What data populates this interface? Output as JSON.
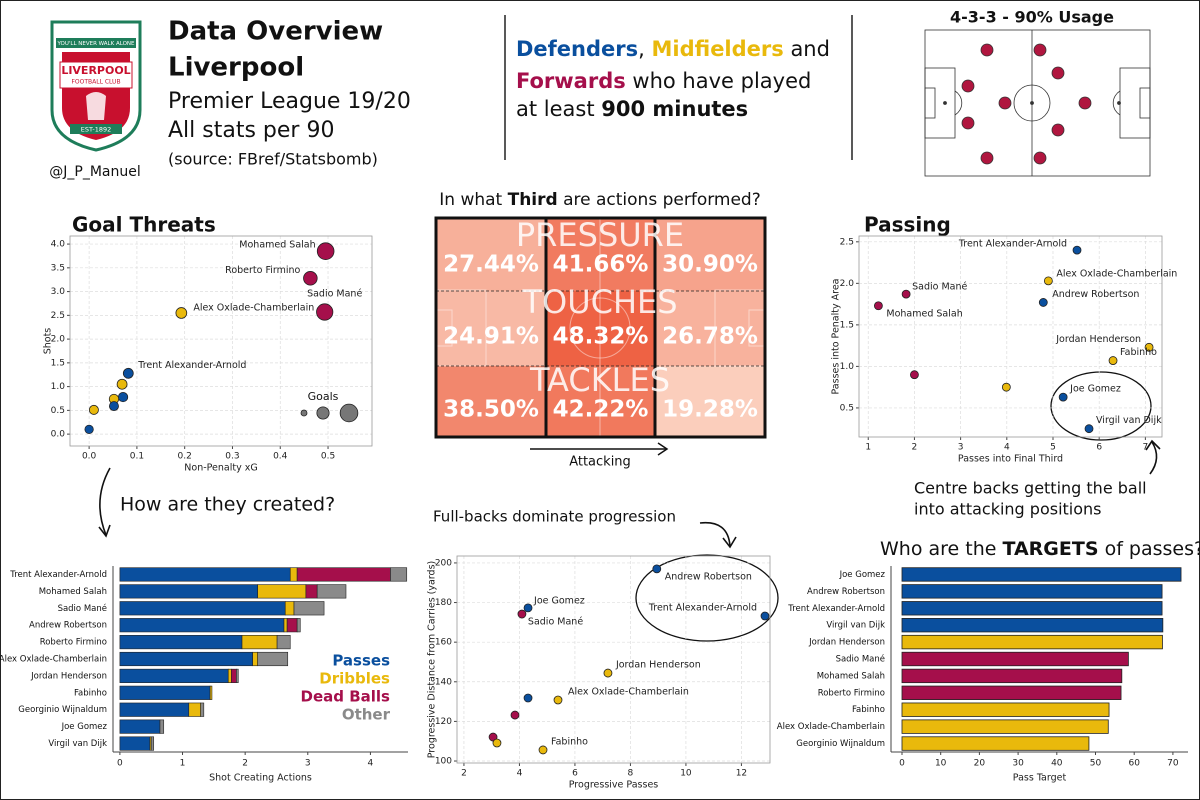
{
  "header": {
    "title": "Data Overview",
    "team": "Liverpool",
    "league": "Premier League 19/20",
    "note": "All stats per 90",
    "source": "(source: FBref/Statsbomb)",
    "handle": "@J_P_Manuel",
    "subtitle_lines": [
      [
        "Defenders",
        ", ",
        "Midfielders",
        " and"
      ],
      [
        "Forwards",
        " who have played"
      ],
      [
        "at least ",
        "900 minutes"
      ]
    ]
  },
  "logo": {
    "motto": "YOU'LL NEVER WALK ALONE",
    "name": "LIVERPOOL",
    "sub": "FOOTBALL CLUB",
    "est": "EST-1892"
  },
  "formation": {
    "title": "4-3-3 - 90% Usage"
  },
  "chart_data": [
    {
      "type": "scatter",
      "title": "Goal Threats",
      "x_label": "Non-Penalty xG",
      "y_label": "Shots",
      "labels": [
        "Mohamed Salah",
        "Roberto Firmino",
        "Sadio Mané",
        "Alex Oxlade-Chamberlain",
        "Trent Alexander-Arnold",
        null,
        null,
        null,
        null,
        null,
        null
      ],
      "x": [
        0.495,
        0.463,
        0.493,
        0.193,
        0.082,
        0.069,
        0.071,
        0.052,
        0.052,
        0.01,
        0.0
      ],
      "y": [
        3.85,
        3.28,
        2.57,
        2.55,
        1.28,
        1.05,
        0.78,
        0.74,
        0.59,
        0.51,
        0.1
      ],
      "sizes": [
        0.59,
        0.3,
        0.55,
        0.12,
        0.08,
        0.08,
        0.06,
        0.06,
        0.05,
        0.05,
        0.03
      ],
      "colors": [
        "#a50f4b",
        "#a50f4b",
        "#a50f4b",
        "#e9b90c",
        "#0a4f9e",
        "#e9b90c",
        "#0a4f9e",
        "#e9b90c",
        "#0a4f9e",
        "#e9b90c",
        "#0a4f9e"
      ],
      "size_legend_title": "Goals",
      "size_legend_values": [
        0.0,
        0.2,
        0.7
      ],
      "xlim": [
        -0.04,
        0.592
      ],
      "ylim": [
        -0.25,
        4.17
      ],
      "xticks": [
        {
          "value": 0,
          "label": "0.0"
        },
        0.1,
        0.2,
        0.3,
        0.4,
        0.5
      ],
      "yticks": [
        {
          "value": 0,
          "label": "0.0"
        },
        0.5,
        {
          "value": 1,
          "label": "1.0"
        },
        1.5,
        {
          "value": 2,
          "label": "2.0"
        },
        2.5,
        {
          "value": 3,
          "label": "3.0"
        },
        3.5,
        {
          "value": 4,
          "label": "4.0"
        }
      ],
      "grid": true
    },
    {
      "type": "heatmap",
      "title_parts": [
        "In what ",
        "Third",
        " are actions performed?"
      ],
      "rows": [
        "PRESSURE",
        "TOUCHES",
        "TACKLES"
      ],
      "values": [
        [
          27.44,
          41.66,
          30.9
        ],
        [
          24.91,
          48.32,
          26.78
        ],
        [
          38.5,
          42.22,
          19.28
        ]
      ],
      "value_labels": [
        [
          "27.44%",
          "41.66%",
          "30.90%"
        ],
        [
          "24.91%",
          "48.32%",
          "26.78%"
        ],
        [
          "38.50%",
          "42.22%",
          "19.28%"
        ]
      ],
      "x_label": "Attacking"
    },
    {
      "type": "scatter",
      "title": "Passing",
      "x_label": "Passes into Final Third",
      "y_label": "Passes into Penalty Area",
      "labels": [
        "Trent Alexander-Arnold",
        "Alex Oxlade-Chamberlain",
        "Sadio Mané",
        "Andrew Robertson",
        "Mohamed Salah",
        "Jordan Henderson",
        "Fabinho",
        null,
        null,
        "Joe Gomez",
        "Virgil van Dijk"
      ],
      "x": [
        5.52,
        4.9,
        1.82,
        4.79,
        1.22,
        7.08,
        6.3,
        2.0,
        3.99,
        5.22,
        5.78
      ],
      "y": [
        2.4,
        2.03,
        1.87,
        1.77,
        1.73,
        1.23,
        1.07,
        0.9,
        0.75,
        0.63,
        0.25
      ],
      "colors": [
        "#0a4f9e",
        "#e9b90c",
        "#a50f4b",
        "#0a4f9e",
        "#a50f4b",
        "#e9b90c",
        "#e9b90c",
        "#a50f4b",
        "#e9b90c",
        "#0a4f9e",
        "#0a4f9e"
      ],
      "annotation_lines": [
        "Centre backs getting the ball",
        "into attacking positions"
      ],
      "xlim": [
        0.8,
        7.36
      ],
      "ylim": [
        0.15,
        2.57
      ],
      "xticks": [
        1,
        2,
        3,
        4,
        5,
        6,
        7
      ],
      "yticks": [
        0.5,
        {
          "value": 1,
          "label": "1.0"
        },
        1.5,
        {
          "value": 2,
          "label": "2.0"
        },
        2.5
      ],
      "grid": true
    },
    {
      "type": "bar",
      "orientation": "horizontal",
      "stacked": true,
      "title": "How are they created?",
      "x_label": "Shot Creating Actions",
      "categories": [
        "Trent Alexander-Arnold",
        "Mohamed Salah",
        "Sadio Mané",
        "Andrew Robertson",
        "Roberto Firmino",
        "Alex Oxlade-Chamberlain",
        "Jordan Henderson",
        "Fabinho",
        "Georginio Wijnaldum",
        "Joe Gomez",
        "Virgil van Dijk"
      ],
      "series": [
        {
          "name": "Passes",
          "color": "#0a4f9e",
          "values": [
            2.72,
            2.2,
            2.64,
            2.62,
            1.95,
            2.12,
            1.73,
            1.44,
            1.1,
            0.64,
            0.48
          ]
        },
        {
          "name": "Dribbles",
          "color": "#e9b90c",
          "values": [
            0.11,
            0.77,
            0.14,
            0.05,
            0.56,
            0.08,
            0.05,
            0.03,
            0.19,
            0,
            0.02
          ]
        },
        {
          "name": "Dead Balls",
          "color": "#a50f4b",
          "values": [
            1.49,
            0.18,
            0,
            0.16,
            0,
            0,
            0.08,
            0,
            0,
            0,
            0
          ]
        },
        {
          "name": "Other",
          "color": "#8a8a8a",
          "values": [
            0.26,
            0.46,
            0.48,
            0.05,
            0.21,
            0.48,
            0.03,
            0,
            0.05,
            0.06,
            0.04
          ]
        }
      ],
      "xlim": [
        -0.11,
        4.6
      ],
      "xticks": [
        0,
        1,
        2,
        3,
        4
      ],
      "grid": false
    },
    {
      "type": "scatter",
      "title": "Full-backs dominate progression",
      "x_label": "Progressive Passes",
      "y_label": "Progressive Distance from Carries (yards)",
      "labels": [
        "Andrew Robertson",
        "Trent Alexander-Arnold",
        "Joe Gomez",
        "Sadio Mané",
        "Jordan Henderson",
        "Alex Oxlade-Chamberlain",
        null,
        null,
        null,
        null,
        "Fabinho"
      ],
      "x": [
        8.95,
        12.85,
        4.31,
        4.09,
        7.19,
        5.39,
        4.31,
        3.84,
        3.05,
        3.19,
        4.85
      ],
      "y": [
        197.0,
        173.2,
        177.3,
        174.2,
        144.4,
        130.8,
        131.8,
        123.2,
        112.1,
        109.1,
        105.6
      ],
      "colors": [
        "#0a4f9e",
        "#0a4f9e",
        "#0a4f9e",
        "#a50f4b",
        "#e9b90c",
        "#e9b90c",
        "#0a4f9e",
        "#a50f4b",
        "#a50f4b",
        "#e9b90c",
        "#e9b90c"
      ],
      "xlim": [
        1.75,
        13.03
      ],
      "ylim": [
        99,
        203.5
      ],
      "xticks": [
        2,
        4,
        6,
        8,
        10,
        12
      ],
      "yticks": [
        100,
        120,
        140,
        160,
        180,
        200
      ],
      "grid": true
    },
    {
      "type": "bar",
      "orientation": "horizontal",
      "stacked": false,
      "title_parts": [
        "Who are the ",
        "TARGETS",
        " of passes?"
      ],
      "x_label": "Pass Target",
      "categories": [
        "Joe Gomez",
        "Andrew Robertson",
        "Trent Alexander-Arnold",
        "Virgil van Dijk",
        "Jordan Henderson",
        "Sadio Mané",
        "Mohamed Salah",
        "Roberto Firmino",
        "Fabinho",
        "Alex Oxlade-Chamberlain",
        "Georginio Wijnaldum"
      ],
      "values": [
        72.1,
        67.2,
        67.2,
        67.4,
        67.3,
        58.5,
        56.8,
        56.6,
        53.5,
        53.3,
        48.3
      ],
      "colors": [
        "#0a4f9e",
        "#0a4f9e",
        "#0a4f9e",
        "#0a4f9e",
        "#e9b90c",
        "#a50f4b",
        "#a50f4b",
        "#a50f4b",
        "#e9b90c",
        "#e9b90c",
        "#e9b90c"
      ],
      "xlim": [
        -2.84,
        73.9
      ],
      "xticks": [
        0,
        10,
        20,
        30,
        40,
        50,
        60,
        70
      ],
      "grid": false
    }
  ]
}
